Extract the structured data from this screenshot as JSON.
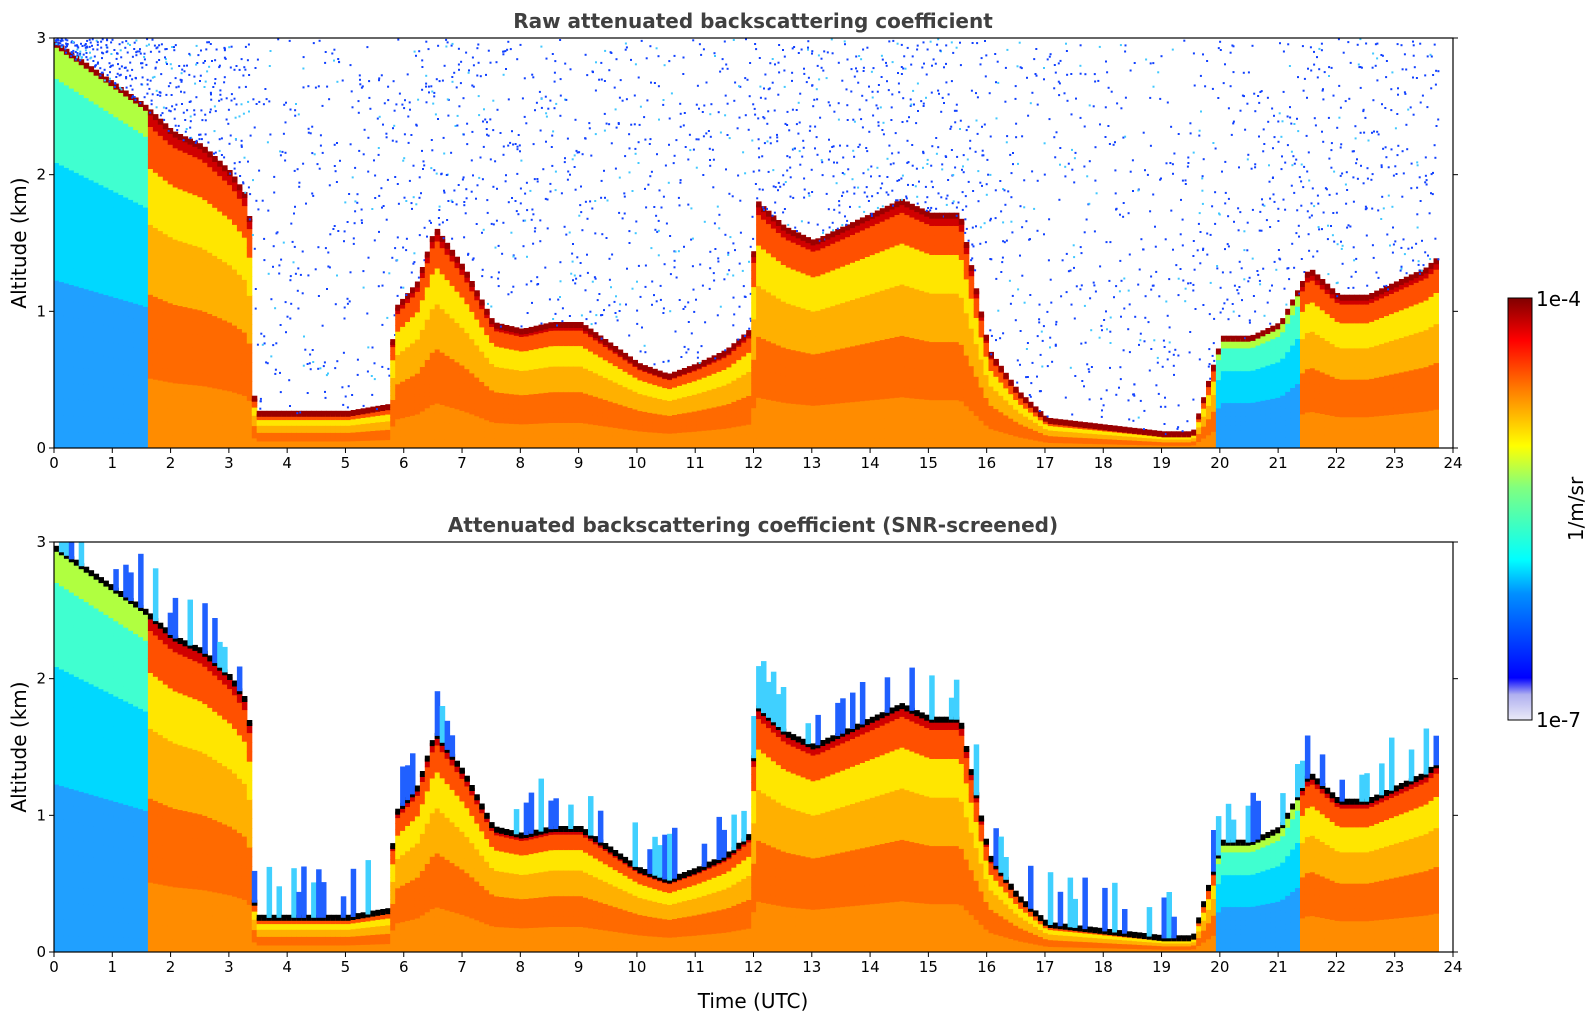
{
  "chart_data": [
    {
      "type": "heatmap",
      "title": "Raw attenuated backscattering coefficient",
      "xlabel": "",
      "ylabel": "Altitude (km)",
      "xlim": [
        0,
        24
      ],
      "ylim": [
        0,
        3
      ],
      "x_ticks": [
        "0",
        "1",
        "2",
        "3",
        "4",
        "5",
        "6",
        "7",
        "8",
        "9",
        "10",
        "11",
        "12",
        "13",
        "14",
        "15",
        "16",
        "17",
        "18",
        "19",
        "20",
        "21",
        "22",
        "23",
        "24"
      ],
      "y_ticks": [
        "0",
        "1",
        "2",
        "3"
      ],
      "data_end_hour": 23.75,
      "colormap": "jet",
      "noise": "speckled (blue dots) above cloud / layer tops",
      "cloud_base_km": [
        [
          0.0,
          2.95
        ],
        [
          1.0,
          2.65
        ],
        [
          1.5,
          2.5
        ],
        [
          2.0,
          2.3
        ],
        [
          2.5,
          2.2
        ],
        [
          3.0,
          2.0
        ],
        [
          3.3,
          1.8
        ],
        [
          3.4,
          0.25
        ],
        [
          4.0,
          0.25
        ],
        [
          5.0,
          0.25
        ],
        [
          5.7,
          0.3
        ],
        [
          5.8,
          1.0
        ],
        [
          6.2,
          1.2
        ],
        [
          6.5,
          1.6
        ],
        [
          7.0,
          1.3
        ],
        [
          7.5,
          0.9
        ],
        [
          8.0,
          0.85
        ],
        [
          8.5,
          0.9
        ],
        [
          9.0,
          0.9
        ],
        [
          9.5,
          0.75
        ],
        [
          10.0,
          0.6
        ],
        [
          10.5,
          0.52
        ],
        [
          11.0,
          0.6
        ],
        [
          11.5,
          0.7
        ],
        [
          11.9,
          0.85
        ],
        [
          12.0,
          1.8
        ],
        [
          12.5,
          1.6
        ],
        [
          13.0,
          1.5
        ],
        [
          13.5,
          1.6
        ],
        [
          14.0,
          1.7
        ],
        [
          14.5,
          1.8
        ],
        [
          15.0,
          1.7
        ],
        [
          15.5,
          1.7
        ],
        [
          16.0,
          0.7
        ],
        [
          16.5,
          0.4
        ],
        [
          17.0,
          0.2
        ],
        [
          18.0,
          0.15
        ],
        [
          19.0,
          0.1
        ],
        [
          19.5,
          0.1
        ],
        [
          20.0,
          0.8
        ],
        [
          20.5,
          0.8
        ],
        [
          21.0,
          0.9
        ],
        [
          21.5,
          1.3
        ],
        [
          22.0,
          1.1
        ],
        [
          22.5,
          1.1
        ],
        [
          23.0,
          1.2
        ],
        [
          23.5,
          1.3
        ],
        [
          23.75,
          1.4
        ]
      ]
    },
    {
      "type": "heatmap",
      "title": "Attenuated backscattering coefficient (SNR-screened)",
      "xlabel": "Time (UTC)",
      "ylabel": "Altitude (km)",
      "xlim": [
        0,
        24
      ],
      "ylim": [
        0,
        3
      ],
      "x_ticks": [
        "0",
        "1",
        "2",
        "3",
        "4",
        "5",
        "6",
        "7",
        "8",
        "9",
        "10",
        "11",
        "12",
        "13",
        "14",
        "15",
        "16",
        "17",
        "18",
        "19",
        "20",
        "21",
        "22",
        "23",
        "24"
      ],
      "y_ticks": [
        "0",
        "1",
        "2",
        "3"
      ],
      "data_end_hour": 23.75,
      "colormap": "jet",
      "noise": "removed (white above signal); saturated cloud base in black",
      "cloud_base_km": [
        [
          0.0,
          2.95
        ],
        [
          1.0,
          2.65
        ],
        [
          1.5,
          2.5
        ],
        [
          2.0,
          2.3
        ],
        [
          2.5,
          2.2
        ],
        [
          3.0,
          2.0
        ],
        [
          3.3,
          1.8
        ],
        [
          3.4,
          0.25
        ],
        [
          4.0,
          0.25
        ],
        [
          5.0,
          0.25
        ],
        [
          5.7,
          0.3
        ],
        [
          5.8,
          1.0
        ],
        [
          6.2,
          1.2
        ],
        [
          6.5,
          1.6
        ],
        [
          7.0,
          1.3
        ],
        [
          7.5,
          0.9
        ],
        [
          8.0,
          0.85
        ],
        [
          8.5,
          0.9
        ],
        [
          9.0,
          0.9
        ],
        [
          9.5,
          0.75
        ],
        [
          10.0,
          0.6
        ],
        [
          10.5,
          0.52
        ],
        [
          11.0,
          0.6
        ],
        [
          11.5,
          0.7
        ],
        [
          11.9,
          0.85
        ],
        [
          12.0,
          1.8
        ],
        [
          12.5,
          1.6
        ],
        [
          13.0,
          1.5
        ],
        [
          13.5,
          1.6
        ],
        [
          14.0,
          1.7
        ],
        [
          14.5,
          1.8
        ],
        [
          15.0,
          1.7
        ],
        [
          15.5,
          1.7
        ],
        [
          16.0,
          0.7
        ],
        [
          16.5,
          0.4
        ],
        [
          17.0,
          0.2
        ],
        [
          18.0,
          0.15
        ],
        [
          19.0,
          0.1
        ],
        [
          19.5,
          0.1
        ],
        [
          20.0,
          0.8
        ],
        [
          20.5,
          0.8
        ],
        [
          21.0,
          0.9
        ],
        [
          21.5,
          1.3
        ],
        [
          22.0,
          1.1
        ],
        [
          22.5,
          1.1
        ],
        [
          23.0,
          1.2
        ],
        [
          23.5,
          1.3
        ],
        [
          23.75,
          1.4
        ]
      ]
    }
  ],
  "colorbar": {
    "label": "1/m/sr",
    "max_label": "1e-4",
    "min_label": "1e-7",
    "colors": [
      "#e8e8f8",
      "#0000ff",
      "#00c8ff",
      "#00ffff",
      "#ffff00",
      "#ff8800",
      "#ff0000",
      "#800000"
    ]
  }
}
